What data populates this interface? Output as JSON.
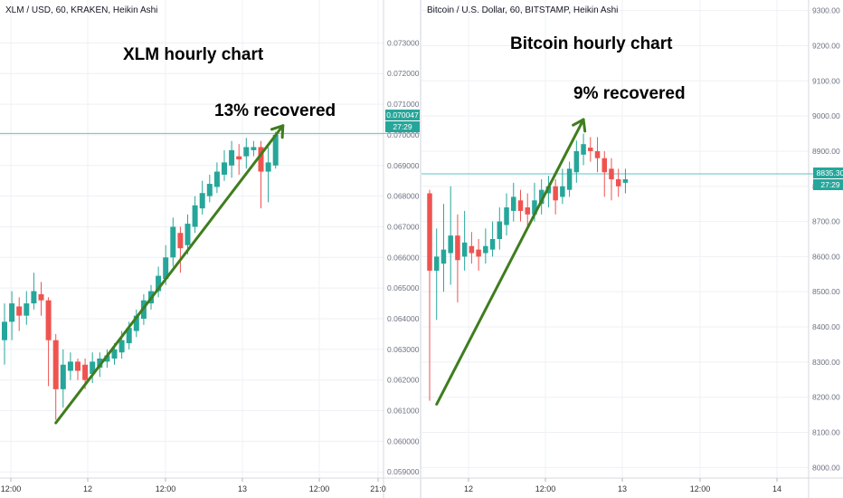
{
  "colors": {
    "up": "#26a69a",
    "down": "#ef5350",
    "arrow": "#3f7d1e",
    "grid": "#eef0f3",
    "axis_text": "#6b7280",
    "price_line": "#5bc6c7"
  },
  "chart_data": [
    {
      "type": "candlestick",
      "header": "XLM / USD, 60, KRAKEN, Heikin Ashi",
      "annotation_title": "XLM hourly chart",
      "annotation_text": "13% recovered",
      "price_label": "0.070047",
      "countdown_label": "27:29",
      "price_level": 0.070047,
      "ylim": [
        0.0588,
        0.0744
      ],
      "y_ticks": [
        "0.059000",
        "0.060000",
        "0.061000",
        "0.062000",
        "0.063000",
        "0.064000",
        "0.065000",
        "0.066000",
        "0.067000",
        "0.068000",
        "0.069000",
        "0.070000",
        "0.071000",
        "0.072000",
        "0.073000"
      ],
      "x_ticks": [
        "12:00",
        "12",
        "12:00",
        "13",
        "12:00",
        "21:0"
      ],
      "arrow": {
        "from_index": 7,
        "from_value": 0.0606,
        "to_index": 38,
        "to_value": 0.0703
      },
      "candles": [
        {
          "o": 0.0633,
          "c": 0.0639,
          "h": 0.0645,
          "l": 0.0625
        },
        {
          "o": 0.0639,
          "c": 0.0645,
          "h": 0.0649,
          "l": 0.0633
        },
        {
          "o": 0.0644,
          "c": 0.0641,
          "h": 0.0647,
          "l": 0.0636
        },
        {
          "o": 0.0641,
          "c": 0.0645,
          "h": 0.0649,
          "l": 0.0638
        },
        {
          "o": 0.0645,
          "c": 0.0649,
          "h": 0.0655,
          "l": 0.0643
        },
        {
          "o": 0.0648,
          "c": 0.0646,
          "h": 0.0652,
          "l": 0.0641
        },
        {
          "o": 0.0646,
          "c": 0.0633,
          "h": 0.0647,
          "l": 0.0618
        },
        {
          "o": 0.0633,
          "c": 0.0617,
          "h": 0.0635,
          "l": 0.0607
        },
        {
          "o": 0.0617,
          "c": 0.0625,
          "h": 0.063,
          "l": 0.0611
        },
        {
          "o": 0.0623,
          "c": 0.0626,
          "h": 0.0629,
          "l": 0.062
        },
        {
          "o": 0.0626,
          "c": 0.0623,
          "h": 0.0627,
          "l": 0.062
        },
        {
          "o": 0.0625,
          "c": 0.062,
          "h": 0.0627,
          "l": 0.0617
        },
        {
          "o": 0.0622,
          "c": 0.0626,
          "h": 0.0629,
          "l": 0.0619
        },
        {
          "o": 0.0624,
          "c": 0.0627,
          "h": 0.0629,
          "l": 0.0621
        },
        {
          "o": 0.0626,
          "c": 0.0628,
          "h": 0.063,
          "l": 0.0624
        },
        {
          "o": 0.0627,
          "c": 0.063,
          "h": 0.0632,
          "l": 0.0625
        },
        {
          "o": 0.0629,
          "c": 0.0633,
          "h": 0.0636,
          "l": 0.0627
        },
        {
          "o": 0.0632,
          "c": 0.0637,
          "h": 0.0639,
          "l": 0.063
        },
        {
          "o": 0.0636,
          "c": 0.0641,
          "h": 0.0643,
          "l": 0.0634
        },
        {
          "o": 0.064,
          "c": 0.0646,
          "h": 0.0648,
          "l": 0.0638
        },
        {
          "o": 0.0645,
          "c": 0.0649,
          "h": 0.0651,
          "l": 0.0643
        },
        {
          "o": 0.0649,
          "c": 0.0654,
          "h": 0.0657,
          "l": 0.0647
        },
        {
          "o": 0.0653,
          "c": 0.066,
          "h": 0.0664,
          "l": 0.0651
        },
        {
          "o": 0.066,
          "c": 0.067,
          "h": 0.0673,
          "l": 0.0657
        },
        {
          "o": 0.0668,
          "c": 0.0663,
          "h": 0.067,
          "l": 0.0655
        },
        {
          "o": 0.0664,
          "c": 0.0671,
          "h": 0.0674,
          "l": 0.0661
        },
        {
          "o": 0.067,
          "c": 0.0677,
          "h": 0.068,
          "l": 0.0668
        },
        {
          "o": 0.0676,
          "c": 0.0681,
          "h": 0.0685,
          "l": 0.0674
        },
        {
          "o": 0.068,
          "c": 0.0684,
          "h": 0.0687,
          "l": 0.0678
        },
        {
          "o": 0.0683,
          "c": 0.0688,
          "h": 0.0691,
          "l": 0.0681
        },
        {
          "o": 0.0687,
          "c": 0.0691,
          "h": 0.0695,
          "l": 0.0685
        },
        {
          "o": 0.069,
          "c": 0.0695,
          "h": 0.0698,
          "l": 0.0686
        },
        {
          "o": 0.0693,
          "c": 0.0692,
          "h": 0.0697,
          "l": 0.0687
        },
        {
          "o": 0.0693,
          "c": 0.0696,
          "h": 0.0699,
          "l": 0.0689
        },
        {
          "o": 0.0695,
          "c": 0.0696,
          "h": 0.0698,
          "l": 0.0693
        },
        {
          "o": 0.0696,
          "c": 0.0688,
          "h": 0.0698,
          "l": 0.0676
        },
        {
          "o": 0.0688,
          "c": 0.0691,
          "h": 0.0696,
          "l": 0.0678
        },
        {
          "o": 0.069,
          "c": 0.07,
          "h": 0.0701,
          "l": 0.0689
        }
      ]
    },
    {
      "type": "candlestick",
      "header": "Bitcoin / U.S. Dollar, 60, BITSTAMP, Heikin Ashi",
      "annotation_title": "Bitcoin hourly chart",
      "annotation_text": "9% recovered",
      "price_label": "8835.30",
      "countdown_label": "27:29",
      "price_level": 8835.3,
      "ylim": [
        7970,
        9330
      ],
      "y_ticks": [
        "8000.00",
        "8100.00",
        "8200.00",
        "8300.00",
        "8400.00",
        "8500.00",
        "8600.00",
        "8700.00",
        "8800.00",
        "8900.00",
        "9000.00",
        "9100.00",
        "9200.00",
        "9300.00"
      ],
      "x_ticks": [
        "12",
        "12:00",
        "13",
        "12:00",
        "14"
      ],
      "arrow": {
        "from_index": 1,
        "from_value": 8180,
        "to_index": 22,
        "to_value": 8990
      },
      "candles": [
        {
          "o": 8780,
          "c": 8560,
          "h": 8790,
          "l": 8190
        },
        {
          "o": 8560,
          "c": 8600,
          "h": 8680,
          "l": 8420
        },
        {
          "o": 8580,
          "c": 8620,
          "h": 8750,
          "l": 8500
        },
        {
          "o": 8610,
          "c": 8660,
          "h": 8800,
          "l": 8520
        },
        {
          "o": 8660,
          "c": 8590,
          "h": 8720,
          "l": 8470
        },
        {
          "o": 8600,
          "c": 8640,
          "h": 8730,
          "l": 8560
        },
        {
          "o": 8630,
          "c": 8610,
          "h": 8670,
          "l": 8580
        },
        {
          "o": 8620,
          "c": 8600,
          "h": 8650,
          "l": 8560
        },
        {
          "o": 8610,
          "c": 8630,
          "h": 8680,
          "l": 8580
        },
        {
          "o": 8620,
          "c": 8650,
          "h": 8700,
          "l": 8600
        },
        {
          "o": 8650,
          "c": 8700,
          "h": 8740,
          "l": 8620
        },
        {
          "o": 8690,
          "c": 8740,
          "h": 8780,
          "l": 8660
        },
        {
          "o": 8730,
          "c": 8770,
          "h": 8810,
          "l": 8700
        },
        {
          "o": 8760,
          "c": 8730,
          "h": 8790,
          "l": 8700
        },
        {
          "o": 8740,
          "c": 8720,
          "h": 8780,
          "l": 8680
        },
        {
          "o": 8720,
          "c": 8760,
          "h": 8810,
          "l": 8700
        },
        {
          "o": 8750,
          "c": 8790,
          "h": 8820,
          "l": 8720
        },
        {
          "o": 8780,
          "c": 8800,
          "h": 8830,
          "l": 8740
        },
        {
          "o": 8800,
          "c": 8760,
          "h": 8820,
          "l": 8720
        },
        {
          "o": 8770,
          "c": 8800,
          "h": 8850,
          "l": 8750
        },
        {
          "o": 8790,
          "c": 8850,
          "h": 8870,
          "l": 8770
        },
        {
          "o": 8840,
          "c": 8900,
          "h": 8930,
          "l": 8810
        },
        {
          "o": 8890,
          "c": 8920,
          "h": 8950,
          "l": 8860
        },
        {
          "o": 8910,
          "c": 8900,
          "h": 8940,
          "l": 8870
        },
        {
          "o": 8900,
          "c": 8880,
          "h": 8940,
          "l": 8840
        },
        {
          "o": 8880,
          "c": 8840,
          "h": 8900,
          "l": 8770
        },
        {
          "o": 8850,
          "c": 8820,
          "h": 8880,
          "l": 8760
        },
        {
          "o": 8820,
          "c": 8800,
          "h": 8850,
          "l": 8770
        },
        {
          "o": 8810,
          "c": 8820,
          "h": 8850,
          "l": 8780
        }
      ]
    }
  ]
}
